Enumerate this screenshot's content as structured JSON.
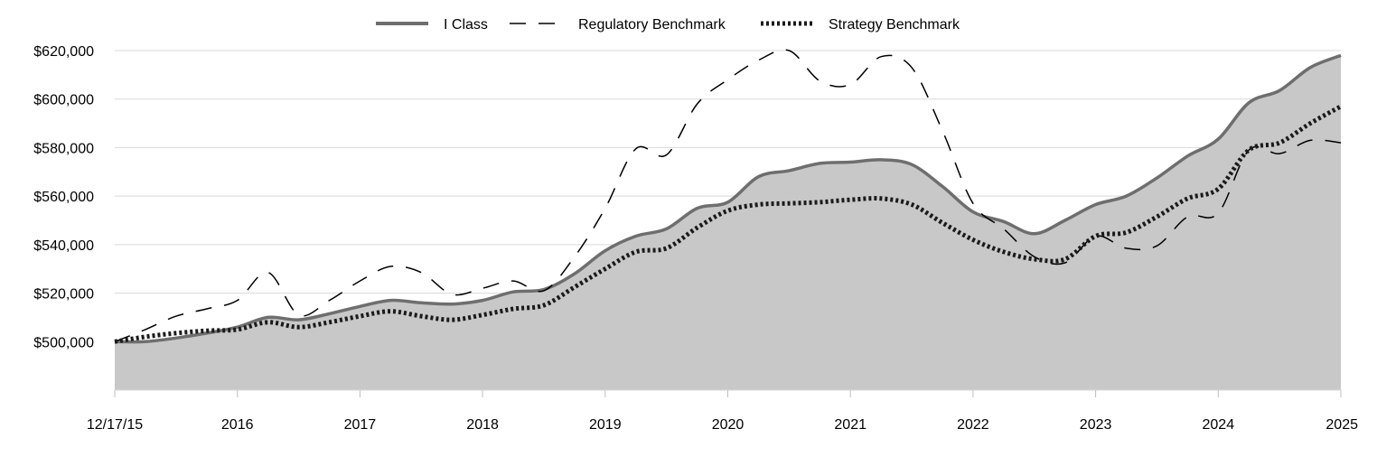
{
  "chart_data": {
    "type": "area",
    "title": "",
    "xlabel": "",
    "ylabel": "",
    "ylim": [
      480000,
      620000
    ],
    "xlim": [
      0,
      10
    ],
    "grid": true,
    "legend_position": "top-center",
    "x_tick_labels": [
      "12/17/15",
      "2016",
      "2017",
      "2018",
      "2019",
      "2020",
      "2021",
      "2022",
      "2023",
      "2024",
      "2025"
    ],
    "y_tick_values": [
      500000,
      520000,
      540000,
      560000,
      580000,
      600000,
      620000
    ],
    "y_tick_labels": [
      "$500,000",
      "$520,000",
      "$540,000",
      "$560,000",
      "$580,000",
      "$600,000",
      "$620,000"
    ],
    "series": [
      {
        "name": "I Class",
        "style": "solid-area",
        "color": "#6e6e6e",
        "fill": "#c8c8c8",
        "x": [
          0,
          0.25,
          0.5,
          0.75,
          1.0,
          1.25,
          1.5,
          1.75,
          2.0,
          2.25,
          2.5,
          2.75,
          3.0,
          3.25,
          3.5,
          3.75,
          4.0,
          4.25,
          4.5,
          4.75,
          5.0,
          5.25,
          5.5,
          5.75,
          6.0,
          6.25,
          6.5,
          6.75,
          7.0,
          7.25,
          7.5,
          7.75,
          8.0,
          8.25,
          8.5,
          8.75,
          9.0,
          9.25,
          9.5,
          9.75,
          10.0
        ],
        "values": [
          500000,
          500000,
          501500,
          503500,
          506000,
          510000,
          509000,
          511500,
          514500,
          517000,
          516000,
          515500,
          517000,
          520500,
          521500,
          528000,
          537500,
          543500,
          546500,
          555000,
          557500,
          568000,
          570500,
          573500,
          574000,
          575000,
          573000,
          564000,
          553500,
          549500,
          544500,
          550000,
          556500,
          560000,
          567500,
          576500,
          583500,
          598500,
          603500,
          613000,
          618000
        ]
      },
      {
        "name": "Regulatory Benchmark",
        "style": "dashed",
        "color": "#000000",
        "x": [
          0,
          0.25,
          0.5,
          0.75,
          1.0,
          1.25,
          1.5,
          1.75,
          2.0,
          2.25,
          2.5,
          2.75,
          3.0,
          3.25,
          3.5,
          3.75,
          4.0,
          4.25,
          4.5,
          4.75,
          5.0,
          5.25,
          5.5,
          5.75,
          6.0,
          6.25,
          6.5,
          6.75,
          7.0,
          7.25,
          7.5,
          7.75,
          8.0,
          8.25,
          8.5,
          8.75,
          9.0,
          9.25,
          9.5,
          9.75,
          10.0
        ],
        "values": [
          500000,
          505000,
          510500,
          513500,
          517000,
          528500,
          511000,
          517000,
          525000,
          531000,
          528500,
          519500,
          522000,
          525000,
          521000,
          535000,
          555000,
          579500,
          577000,
          598000,
          608000,
          616000,
          620000,
          607500,
          606000,
          617500,
          613000,
          587000,
          557000,
          546500,
          535000,
          532500,
          543500,
          538500,
          539500,
          551500,
          553000,
          579000,
          577500,
          583000,
          582000
        ]
      },
      {
        "name": "Strategy Benchmark",
        "style": "dotted",
        "color": "#1a1a1a",
        "x": [
          0,
          0.25,
          0.5,
          0.75,
          1.0,
          1.25,
          1.5,
          1.75,
          2.0,
          2.25,
          2.5,
          2.75,
          3.0,
          3.25,
          3.5,
          3.75,
          4.0,
          4.25,
          4.5,
          4.75,
          5.0,
          5.25,
          5.5,
          5.75,
          6.0,
          6.25,
          6.5,
          6.75,
          7.0,
          7.25,
          7.5,
          7.75,
          8.0,
          8.25,
          8.5,
          8.75,
          9.0,
          9.25,
          9.5,
          9.75,
          10.0
        ],
        "values": [
          500000,
          502000,
          503500,
          504500,
          505000,
          508000,
          506000,
          508000,
          510500,
          512500,
          510500,
          509000,
          511000,
          513500,
          515000,
          522500,
          530000,
          537000,
          538500,
          547000,
          554000,
          556500,
          557000,
          557500,
          558500,
          559000,
          556500,
          549000,
          542000,
          537000,
          534000,
          534000,
          543500,
          545000,
          551500,
          559000,
          563000,
          579000,
          582000,
          590000,
          597000
        ]
      }
    ]
  }
}
